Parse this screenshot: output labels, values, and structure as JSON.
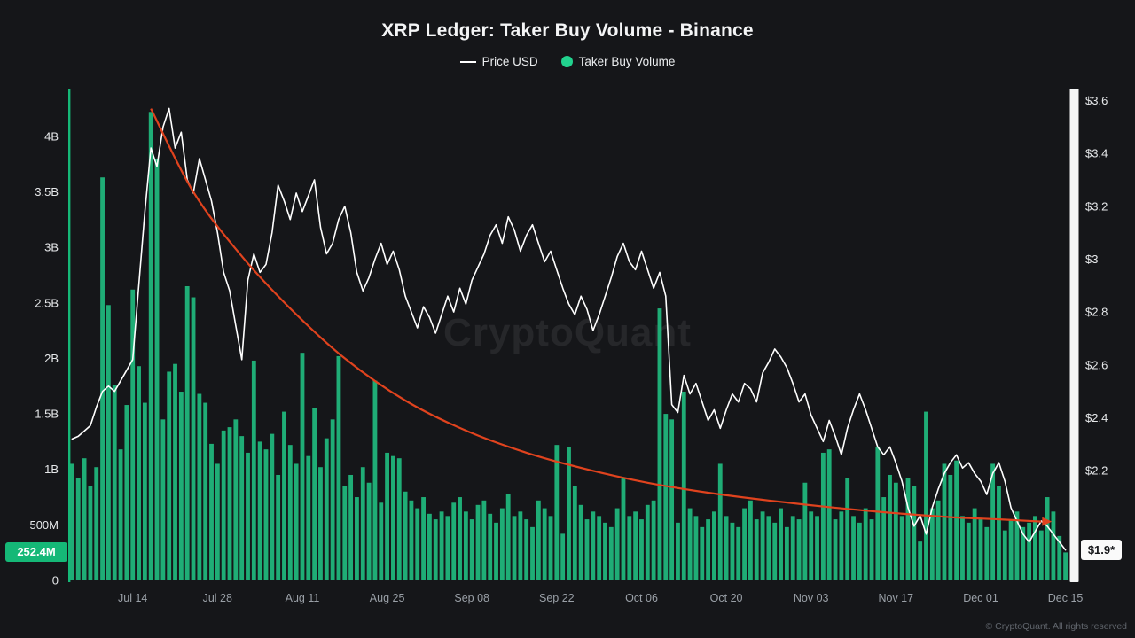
{
  "header": {
    "title": "XRP Ledger: Taker Buy Volume - Binance",
    "legend": [
      {
        "label": "Price USD",
        "swatch": "line",
        "color": "#ffffff"
      },
      {
        "label": "Taker Buy Volume",
        "swatch": "dot",
        "color": "#22d28e"
      }
    ]
  },
  "badges": {
    "current_volume": "252.4M",
    "current_price": "$1.9*"
  },
  "watermark": "CryptoQuant",
  "footer": {
    "copyright": "© CryptoQuant. All rights reserved"
  },
  "colors": {
    "background": "#151619",
    "bar_green": "#1fad76",
    "badge_green": "#15b877",
    "price_line": "#ffffff",
    "trend_red": "#e0431e",
    "axis_text": "#e6e8ea",
    "x_axis_text": "#9aa0a7",
    "axis_strip": "#f5f6f6"
  },
  "chart_data": {
    "type": "bar",
    "subtype": "combo bar + line + trend curve",
    "title": "XRP Ledger: Taker Buy Volume - Binance",
    "x_tick_labels": [
      "Jul 14",
      "Jul 28",
      "Aug 11",
      "Aug 25",
      "Sep 08",
      "Sep 22",
      "Oct 06",
      "Oct 20",
      "Nov 03",
      "Nov 17",
      "Dec 01",
      "Dec 15"
    ],
    "x_tick_indices": [
      10,
      24,
      38,
      52,
      66,
      80,
      94,
      108,
      122,
      136,
      150,
      164
    ],
    "left_axis": {
      "name": "Taker Buy Volume",
      "ticks": [
        0,
        0.5,
        1,
        1.5,
        2,
        2.5,
        3,
        3.5,
        4
      ],
      "tick_labels": [
        "0",
        "500M",
        "1B",
        "1.5B",
        "2B",
        "2.5B",
        "3B",
        "3.5B",
        "4B"
      ],
      "range": [
        0,
        4.43
      ],
      "unit": "billions"
    },
    "right_axis": {
      "name": "Price USD",
      "ticks": [
        2.2,
        2.4,
        2.6,
        2.8,
        3.0,
        3.2,
        3.4,
        3.6
      ],
      "tick_labels": [
        "$2.2",
        "$2.4",
        "$2.6",
        "$2.8",
        "$3",
        "$3.2",
        "$3.4",
        "$3.6"
      ],
      "range": [
        1.785,
        3.645
      ]
    },
    "grid": "off",
    "legend_position": "top-center",
    "current": {
      "taker_buy_volume": "252.4M",
      "price_usd": "$1.9*"
    },
    "series": [
      {
        "name": "Taker Buy Volume",
        "type": "bar",
        "color": "#1fad76",
        "values_billions": [
          1.05,
          0.92,
          1.1,
          0.85,
          1.02,
          3.63,
          2.48,
          1.76,
          1.18,
          1.58,
          2.62,
          1.93,
          1.6,
          4.22,
          3.8,
          1.45,
          1.88,
          1.95,
          1.7,
          2.65,
          2.55,
          1.68,
          1.6,
          1.23,
          1.05,
          1.35,
          1.38,
          1.45,
          1.3,
          1.15,
          1.98,
          1.25,
          1.18,
          1.32,
          0.95,
          1.52,
          1.22,
          1.05,
          2.05,
          1.12,
          1.55,
          1.02,
          1.28,
          1.45,
          2.02,
          0.85,
          0.95,
          0.75,
          1.02,
          0.88,
          1.8,
          0.7,
          1.15,
          1.12,
          1.1,
          0.8,
          0.72,
          0.65,
          0.75,
          0.6,
          0.55,
          0.62,
          0.58,
          0.7,
          0.75,
          0.62,
          0.55,
          0.68,
          0.72,
          0.6,
          0.52,
          0.65,
          0.78,
          0.58,
          0.62,
          0.55,
          0.48,
          0.72,
          0.65,
          0.58,
          1.22,
          0.42,
          1.2,
          0.85,
          0.68,
          0.55,
          0.62,
          0.58,
          0.52,
          0.48,
          0.65,
          0.92,
          0.58,
          0.62,
          0.55,
          0.68,
          0.72,
          2.45,
          1.5,
          1.45,
          0.52,
          1.7,
          0.65,
          0.58,
          0.48,
          0.55,
          0.62,
          1.05,
          0.58,
          0.52,
          0.48,
          0.65,
          0.72,
          0.55,
          0.62,
          0.58,
          0.52,
          0.65,
          0.48,
          0.58,
          0.55,
          0.88,
          0.62,
          0.58,
          1.15,
          1.18,
          0.55,
          0.62,
          0.92,
          0.58,
          0.52,
          0.65,
          0.55,
          1.2,
          0.75,
          0.95,
          0.88,
          0.58,
          0.92,
          0.85,
          0.35,
          1.52,
          0.65,
          0.72,
          1.05,
          0.95,
          1.08,
          0.58,
          0.52,
          0.65,
          0.55,
          0.48,
          1.05,
          0.85,
          0.45,
          0.55,
          0.62,
          0.48,
          0.52,
          0.58,
          0.45,
          0.75,
          0.62,
          0.4,
          0.2524
        ]
      },
      {
        "name": "Price USD",
        "type": "line",
        "color": "#ffffff",
        "values_usd": [
          2.32,
          2.33,
          2.35,
          2.37,
          2.44,
          2.5,
          2.52,
          2.5,
          2.54,
          2.58,
          2.62,
          2.9,
          3.18,
          3.42,
          3.35,
          3.5,
          3.57,
          3.42,
          3.48,
          3.3,
          3.25,
          3.38,
          3.3,
          3.22,
          3.1,
          2.95,
          2.88,
          2.75,
          2.62,
          2.92,
          3.02,
          2.95,
          2.98,
          3.1,
          3.28,
          3.22,
          3.15,
          3.25,
          3.18,
          3.24,
          3.3,
          3.12,
          3.02,
          3.06,
          3.15,
          3.2,
          3.1,
          2.95,
          2.88,
          2.93,
          3.0,
          3.06,
          2.98,
          3.03,
          2.96,
          2.86,
          2.8,
          2.74,
          2.82,
          2.78,
          2.72,
          2.79,
          2.86,
          2.8,
          2.89,
          2.83,
          2.92,
          2.97,
          3.02,
          3.09,
          3.13,
          3.06,
          3.16,
          3.11,
          3.03,
          3.09,
          3.13,
          3.06,
          2.99,
          3.03,
          2.96,
          2.89,
          2.83,
          2.79,
          2.86,
          2.81,
          2.73,
          2.79,
          2.86,
          2.93,
          3.01,
          3.06,
          2.99,
          2.96,
          3.03,
          2.96,
          2.89,
          2.95,
          2.86,
          2.45,
          2.42,
          2.56,
          2.49,
          2.53,
          2.46,
          2.39,
          2.43,
          2.36,
          2.43,
          2.49,
          2.46,
          2.53,
          2.51,
          2.46,
          2.57,
          2.61,
          2.66,
          2.63,
          2.59,
          2.53,
          2.46,
          2.49,
          2.41,
          2.36,
          2.31,
          2.39,
          2.33,
          2.26,
          2.36,
          2.43,
          2.49,
          2.43,
          2.36,
          2.29,
          2.26,
          2.29,
          2.23,
          2.16,
          2.06,
          1.99,
          2.03,
          1.96,
          2.06,
          2.13,
          2.19,
          2.23,
          2.26,
          2.21,
          2.23,
          2.19,
          2.16,
          2.11,
          2.19,
          2.23,
          2.16,
          2.06,
          2.01,
          1.96,
          1.93,
          1.97,
          2.01,
          1.99,
          1.96,
          1.93,
          1.9
        ]
      },
      {
        "name": "Volume Trend",
        "type": "curve",
        "color": "#e0431e",
        "points": [
          [
            13,
            4.25
          ],
          [
            20,
            3.5
          ],
          [
            28,
            2.92
          ],
          [
            36,
            2.45
          ],
          [
            45,
            2.0
          ],
          [
            55,
            1.62
          ],
          [
            65,
            1.35
          ],
          [
            75,
            1.15
          ],
          [
            85,
            1.0
          ],
          [
            95,
            0.88
          ],
          [
            105,
            0.79
          ],
          [
            115,
            0.72
          ],
          [
            125,
            0.66
          ],
          [
            135,
            0.61
          ],
          [
            145,
            0.57
          ],
          [
            153,
            0.55
          ],
          [
            160,
            0.53
          ]
        ]
      }
    ]
  }
}
